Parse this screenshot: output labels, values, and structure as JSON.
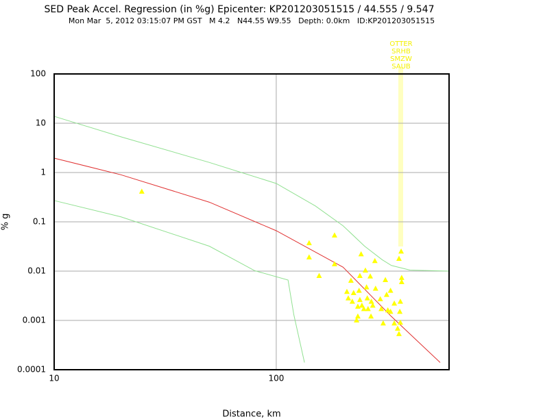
{
  "chart_data": {
    "type": "scatter",
    "title": "SED Peak Accel. Regression (in %g) Epicenter: KP201203051515 / 44.555 / 9.547",
    "subtitle": "Mon Mar  5, 2012 03:15:07 PM GST   M 4.2   N44.55 W9.55   Depth: 0.0km   ID:KP201203051515",
    "xlabel": "Distance, km",
    "ylabel": "% g",
    "xscale": "log",
    "yscale": "log",
    "grid": true,
    "xlim": [
      10,
      600
    ],
    "ylim": [
      0.0001,
      100
    ],
    "xticks": [
      10,
      100
    ],
    "yticks": [
      100,
      10,
      1,
      0.1,
      0.01,
      0.001,
      0.0001
    ],
    "station_labels": [
      "OTTER",
      "SRHB",
      "SMZW",
      "SAUB"
    ],
    "points": {
      "color": "#ffff00",
      "x": [
        24.8,
        140.6,
        140.6,
        183,
        183,
        156,
        241,
        278,
        252,
        238,
        265,
        217,
        310,
        365,
        357,
        367,
        367,
        208,
        223,
        236,
        255,
        280,
        327,
        211,
        220,
        238,
        257,
        268,
        294,
        314,
        233,
        243,
        259,
        272,
        297,
        318,
        327,
        340,
        362,
        360,
        233,
        230,
        267,
        303,
        340,
        352,
        362,
        357,
        248
      ],
      "y": [
        0.41,
        0.037,
        0.019,
        0.053,
        0.0138,
        0.008,
        0.022,
        0.016,
        0.0103,
        0.008,
        0.0078,
        0.0064,
        0.0066,
        0.025,
        0.0178,
        0.0073,
        0.006,
        0.0038,
        0.0036,
        0.004,
        0.0047,
        0.0044,
        0.004,
        0.0028,
        0.0024,
        0.0026,
        0.0028,
        0.0024,
        0.0027,
        0.0033,
        0.0019,
        0.002,
        0.0017,
        0.002,
        0.0017,
        0.0016,
        0.0015,
        0.0022,
        0.0024,
        0.0015,
        0.0012,
        0.001,
        0.0012,
        0.00087,
        0.00087,
        0.00068,
        0.0009,
        0.00053,
        0.0017
      ]
    },
    "lines": [
      {
        "color": "#e03030",
        "x": [
          10,
          20,
          50,
          100,
          200,
          330,
          547
        ],
        "y": [
          1.96,
          0.9,
          0.25,
          0.066,
          0.012,
          0.0012,
          0.00014
        ]
      },
      {
        "color": "#90e090",
        "x": [
          10,
          20,
          50,
          100,
          150,
          200,
          250,
          300,
          330,
          400,
          600
        ],
        "y": [
          13.8,
          5.3,
          1.6,
          0.6,
          0.21,
          0.083,
          0.032,
          0.017,
          0.013,
          0.0105,
          0.01
        ]
      },
      {
        "color": "#90e090",
        "x": [
          10,
          20,
          50,
          80,
          113,
          120,
          134
        ],
        "y": [
          0.27,
          0.126,
          0.032,
          0.0102,
          0.0066,
          0.0013,
          0.00014
        ]
      }
    ]
  }
}
